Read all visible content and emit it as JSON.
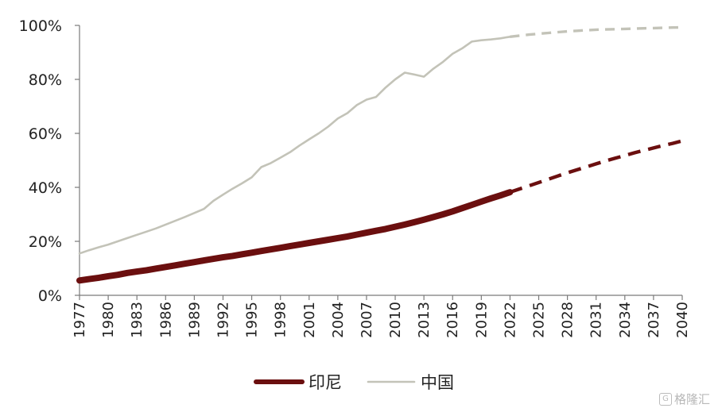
{
  "chart_data": {
    "type": "line",
    "x": [
      1977,
      1978,
      1979,
      1980,
      1981,
      1982,
      1983,
      1984,
      1985,
      1986,
      1987,
      1988,
      1989,
      1990,
      1991,
      1992,
      1993,
      1994,
      1995,
      1996,
      1997,
      1998,
      1999,
      2000,
      2001,
      2002,
      2003,
      2004,
      2005,
      2006,
      2007,
      2008,
      2009,
      2010,
      2011,
      2012,
      2013,
      2014,
      2015,
      2016,
      2017,
      2018,
      2019,
      2020,
      2021,
      2022,
      2023,
      2024,
      2025,
      2026,
      2027,
      2028,
      2029,
      2030,
      2031,
      2032,
      2033,
      2034,
      2035,
      2036,
      2037,
      2038,
      2039,
      2040
    ],
    "xticks": [
      "1977",
      "1980",
      "1983",
      "1986",
      "1989",
      "1992",
      "1995",
      "1998",
      "2001",
      "2004",
      "2007",
      "2010",
      "2013",
      "2016",
      "2019",
      "2022",
      "2025",
      "2028",
      "2031",
      "2034",
      "2037",
      "2040"
    ],
    "yticks": [
      "0%",
      "20%",
      "40%",
      "60%",
      "80%",
      "100%"
    ],
    "ylim": [
      0,
      100
    ],
    "projection_start": 2022,
    "legend_position": "bottom",
    "series": [
      {
        "name": "印尼",
        "color": "#6b0f0f",
        "values": [
          5.5,
          6.0,
          6.5,
          7.1,
          7.6,
          8.3,
          8.8,
          9.3,
          9.9,
          10.5,
          11.1,
          11.7,
          12.3,
          12.9,
          13.5,
          14.1,
          14.6,
          15.2,
          15.8,
          16.4,
          17.0,
          17.6,
          18.2,
          18.8,
          19.4,
          20.0,
          20.6,
          21.2,
          21.8,
          22.5,
          23.2,
          23.9,
          24.6,
          25.4,
          26.2,
          27.1,
          28.0,
          29.0,
          30.0,
          31.1,
          32.3,
          33.5,
          34.7,
          35.9,
          37.0,
          38.2,
          39.4,
          40.6,
          41.8,
          43.0,
          44.2,
          45.4,
          46.5,
          47.6,
          48.7,
          49.8,
          50.8,
          51.8,
          52.8,
          53.7,
          54.6,
          55.5,
          56.3,
          57.2
        ]
      },
      {
        "name": "中国",
        "color": "#c3c3b8",
        "values": [
          15.5,
          16.7,
          17.8,
          18.8,
          20.0,
          21.2,
          22.4,
          23.6,
          24.8,
          26.2,
          27.6,
          29.0,
          30.5,
          32.0,
          35.0,
          37.3,
          39.5,
          41.5,
          43.7,
          47.5,
          49.0,
          51.0,
          53.0,
          55.5,
          57.8,
          60.0,
          62.5,
          65.5,
          67.5,
          70.5,
          72.5,
          73.5,
          77.0,
          80.0,
          82.5,
          81.8,
          81.0,
          84.0,
          86.5,
          89.5,
          91.5,
          94.0,
          94.5,
          94.8,
          95.2,
          95.8,
          96.2,
          96.6,
          96.9,
          97.2,
          97.5,
          97.8,
          98.0,
          98.2,
          98.4,
          98.5,
          98.6,
          98.7,
          98.8,
          98.9,
          99.0,
          99.1,
          99.2,
          99.3
        ]
      }
    ]
  },
  "watermark": {
    "text": "格隆汇",
    "icon": "G"
  }
}
